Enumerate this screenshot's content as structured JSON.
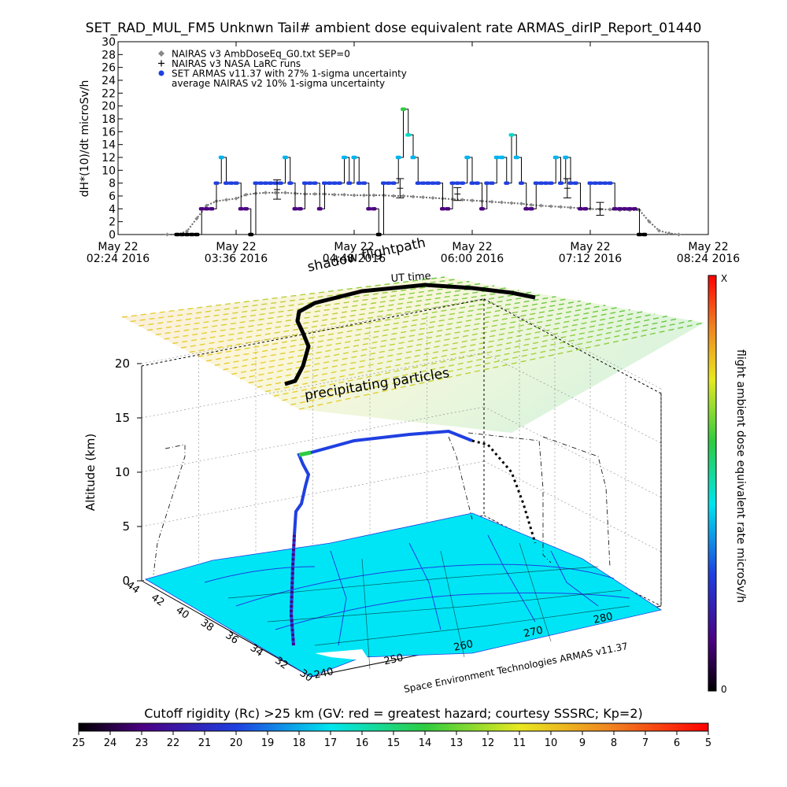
{
  "title": "SET_RAD_MUL_FM5 Unknwn Tail#  ambient dose equivalent rate ARMAS_dirIP_Report_01440",
  "chart_data": [
    {
      "type": "scatter",
      "ylabel": "dH*(10)/dt microSv/h",
      "ylim": [
        0,
        30
      ],
      "yticks": [
        0,
        2,
        4,
        6,
        8,
        10,
        12,
        14,
        16,
        18,
        20,
        22,
        24,
        26,
        28,
        30
      ],
      "xlim_minutes": [
        144,
        504
      ],
      "xticks": [
        {
          "line1": "May 22",
          "line2": "02:24 2016"
        },
        {
          "line1": "May 22",
          "line2": "03:36 2016"
        },
        {
          "line1": "May 22",
          "line2": "04:48 2016"
        },
        {
          "line1": "May 22",
          "line2": "06:00 2016"
        },
        {
          "line1": "May 22",
          "line2": "07:12 2016"
        },
        {
          "line1": "May 22",
          "line2": "08:24 2016"
        }
      ],
      "legend_placement": "top-left",
      "legend": [
        {
          "symbol": "diamond",
          "color": "#888888",
          "label": "NAIRAS v3 AmbDoseEq_G0.txt SEP=0"
        },
        {
          "symbol": "plus",
          "color": "#000000",
          "label": "NAIRAS v3 NASA LaRC runs"
        },
        {
          "symbol": "dot",
          "color": "#1f3fe0",
          "label": "SET ARMAS v11.37 with 27% 1-sigma uncertainty"
        },
        {
          "symbol": "none",
          "color": "#000000",
          "label": "average NAIRAS v2 10% 1-sigma uncertainty"
        }
      ],
      "series": [
        {
          "name": "SET ARMAS v11.37 with 27% 1-sigma uncertainty",
          "x": [
            180,
            183,
            186,
            189,
            192,
            195,
            198,
            201,
            204,
            207,
            210,
            213,
            216,
            219,
            222,
            225,
            228,
            231,
            234,
            237,
            240,
            243,
            246,
            249,
            252,
            255,
            258,
            261,
            264,
            267,
            270,
            273,
            276,
            279,
            282,
            285,
            288,
            291,
            294,
            297,
            300,
            303,
            306,
            309,
            312,
            315,
            318,
            321,
            324,
            327,
            330,
            333,
            336,
            339,
            342,
            345,
            348,
            351,
            354,
            357,
            360,
            363,
            366,
            369,
            372,
            375,
            378,
            381,
            384,
            387,
            390,
            393,
            396,
            399,
            402,
            405,
            408,
            411,
            414,
            417,
            420,
            423,
            426,
            429,
            432,
            435,
            438,
            441,
            444,
            447,
            450,
            453,
            456,
            459,
            462,
            465
          ],
          "y": [
            0,
            0,
            0,
            0,
            0,
            4,
            4,
            4,
            8,
            12,
            8,
            8,
            8,
            4,
            4,
            0,
            8,
            8,
            8,
            8,
            8,
            8,
            12,
            8,
            4,
            4,
            8,
            8,
            8,
            4,
            8,
            8,
            8,
            8,
            12,
            8,
            12,
            8,
            8,
            4,
            4,
            0,
            8,
            8,
            8,
            12,
            19.5,
            15.5,
            12,
            8,
            8,
            8,
            8,
            8,
            4,
            4,
            8,
            8,
            8,
            12,
            8,
            8,
            4,
            8,
            8,
            12,
            12,
            8,
            15.5,
            12,
            8,
            4,
            4,
            8,
            8,
            8,
            8,
            12,
            8,
            12,
            8,
            8,
            4,
            4,
            8,
            8,
            8,
            8,
            8,
            4,
            4,
            4,
            4,
            4,
            0,
            0
          ]
        },
        {
          "name": "NAIRAS v3 AmbDoseEq_G0.txt SEP=0",
          "x": [
            174,
            180,
            186,
            192,
            198,
            204,
            210,
            216,
            222,
            228,
            234,
            240,
            246,
            252,
            258,
            264,
            270,
            276,
            282,
            288,
            294,
            300,
            306,
            312,
            318,
            324,
            330,
            336,
            342,
            348,
            354,
            360,
            366,
            372,
            378,
            384,
            390,
            396,
            402,
            408,
            414,
            420,
            426,
            432,
            438,
            444,
            450,
            456,
            462,
            468,
            474,
            480,
            486
          ],
          "y": [
            0,
            0,
            0.5,
            2.5,
            4.5,
            5.2,
            5.4,
            5.6,
            6.2,
            6.4,
            6.5,
            6.5,
            6.5,
            6.4,
            6.3,
            6.3,
            6.3,
            6.2,
            6.2,
            6.1,
            6.1,
            6.1,
            6.1,
            6.0,
            6.0,
            5.9,
            5.8,
            5.7,
            5.6,
            5.5,
            5.4,
            5.3,
            5.2,
            5.1,
            5.0,
            4.9,
            4.8,
            4.6,
            4.5,
            4.4,
            4.3,
            4.2,
            4.1,
            4.0,
            3.9,
            3.9,
            3.8,
            3.8,
            3.8,
            2.0,
            0.6,
            0.2,
            0
          ]
        },
        {
          "name": "NAIRAS v3 NASA LaRC runs",
          "x": [
            241,
            316,
            351,
            418,
            438
          ],
          "y": [
            7.0,
            7.2,
            6.3,
            7.2,
            4.0
          ],
          "err": [
            1.5,
            1.5,
            1.0,
            1.5,
            1.0
          ]
        }
      ]
    },
    {
      "type": "3d-trajectory",
      "zlabel": "Altitude (km)",
      "zticks": [
        0,
        5,
        10,
        15,
        20
      ],
      "lat_ticks": [
        44,
        42,
        40,
        38,
        36,
        34,
        32,
        30
      ],
      "lon_ticks": [
        240,
        250,
        260,
        270,
        280
      ],
      "credit": "Space Environment Technologies ARMAS v11.37",
      "annotations": {
        "shadow": "shadow flightpath",
        "ut_time": "UT time",
        "particles": "precipitating particles"
      },
      "colorbar": {
        "label": "flight ambient dose equivalent rate microSv/h",
        "top_label": "X",
        "bottom_label": "0"
      }
    },
    {
      "type": "colorbar",
      "title": "Cutoff rigidity (Rc) >25 km (GV: red = greatest hazard; courtesy SSSRC; Kp=2)",
      "ticks": [
        25,
        24,
        23,
        22,
        21,
        20,
        19,
        18,
        17,
        16,
        15,
        14,
        13,
        12,
        11,
        10,
        9,
        8,
        7,
        6,
        5
      ]
    }
  ]
}
